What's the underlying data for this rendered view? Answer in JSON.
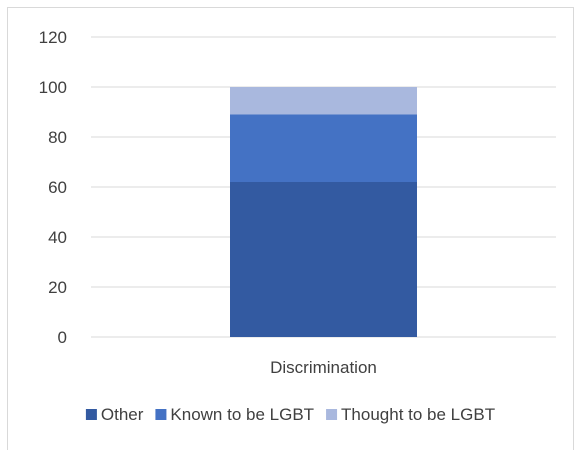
{
  "chart_data": {
    "type": "bar",
    "stacked": true,
    "categories": [
      "Discrimination"
    ],
    "series": [
      {
        "name": "Other",
        "values": [
          62
        ],
        "color": "#335aa1"
      },
      {
        "name": "Known to be LGBT",
        "values": [
          27
        ],
        "color": "#4472c4"
      },
      {
        "name": "Thought to be LGBT",
        "values": [
          11
        ],
        "color": "#a9b8de"
      }
    ],
    "y_ticks": [
      "0",
      "20",
      "40",
      "60",
      "80",
      "100",
      "120"
    ],
    "ylim": [
      0,
      120
    ],
    "grid": true,
    "legend_position": "bottom"
  }
}
